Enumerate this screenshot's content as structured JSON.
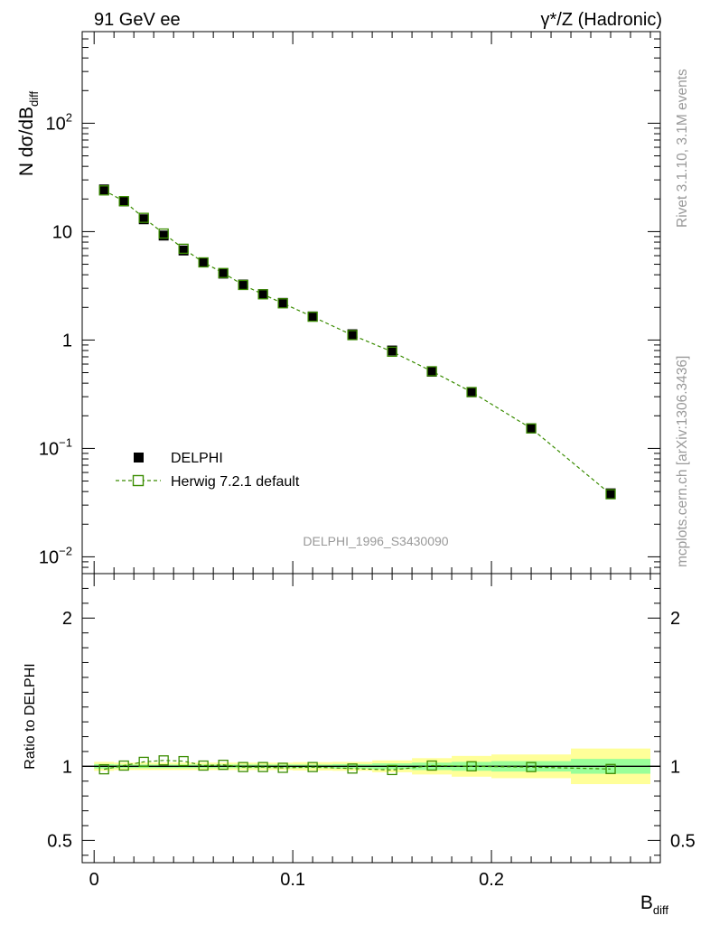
{
  "header": {
    "left_title": "91 GeV ee",
    "right_title": "γ*/Z (Hadronic)"
  },
  "side_labels": {
    "rivet": "Rivet 3.1.10,  3.1M events",
    "mcplots": "mcplots.cern.ch [arXiv:1306.3436]"
  },
  "analysis_id": "DELPHI_1996_S3430090",
  "colors": {
    "data": "#000000",
    "mc": "#3a8c00",
    "band_inner": "#99ff99",
    "band_outer": "#ffff99",
    "watermark": "#999999"
  },
  "chart_data": [
    {
      "type": "scatter",
      "panel": "main",
      "ylabel": "N dσ/dB",
      "ylabel_sub": "diff",
      "yscale": "log",
      "ylim": [
        0.007,
        700
      ],
      "xlim": [
        -0.006,
        0.285
      ],
      "y_ticks": [
        {
          "value": 0.01,
          "base": "10",
          "exp": "−2"
        },
        {
          "value": 0.1,
          "base": "10",
          "exp": "−1"
        },
        {
          "value": 1,
          "base": "1",
          "exp": ""
        },
        {
          "value": 10,
          "base": "10",
          "exp": ""
        },
        {
          "value": 100,
          "base": "10",
          "exp": "2"
        }
      ],
      "legend": [
        {
          "label": "DELPHI",
          "marker": "filled-square"
        },
        {
          "label": "Herwig 7.2.1 default",
          "marker": "open-square-dashed-line"
        }
      ],
      "legend_position": "middle-left",
      "series": [
        {
          "name": "DELPHI",
          "x": [
            0.005,
            0.015,
            0.025,
            0.035,
            0.045,
            0.055,
            0.065,
            0.075,
            0.085,
            0.095,
            0.11,
            0.13,
            0.15,
            0.17,
            0.19,
            0.22,
            0.26
          ],
          "values": [
            24.5,
            19.0,
            13.0,
            9.2,
            6.7,
            5.2,
            4.1,
            3.25,
            2.65,
            2.2,
            1.65,
            1.13,
            0.8,
            0.51,
            0.33,
            0.153,
            0.0385
          ]
        },
        {
          "name": "Herwig 7.2.1 default",
          "x": [
            0.005,
            0.015,
            0.025,
            0.035,
            0.045,
            0.055,
            0.065,
            0.075,
            0.085,
            0.095,
            0.11,
            0.13,
            0.15,
            0.17,
            0.19,
            0.22,
            0.26
          ],
          "values": [
            24.0,
            19.1,
            13.4,
            9.6,
            6.95,
            5.2,
            4.15,
            3.22,
            2.64,
            2.18,
            1.64,
            1.11,
            0.78,
            0.515,
            0.331,
            0.153,
            0.0378
          ]
        }
      ]
    },
    {
      "type": "line",
      "panel": "ratio",
      "ylabel": "Ratio to DELPHI",
      "ylim": [
        0.35,
        2.3
      ],
      "xlim": [
        -0.006,
        0.285
      ],
      "y_ticks": [
        0.5,
        1,
        2
      ],
      "y_tick_labels": [
        "0.5",
        "1",
        "2"
      ],
      "x_ticks": [
        0,
        0.1,
        0.2
      ],
      "x_tick_labels": [
        "0",
        "0.1",
        "0.2"
      ],
      "xlabel": "B",
      "xlabel_sub": "diff",
      "bins": [
        {
          "lo": 0.0,
          "hi": 0.01,
          "inner": 0.015,
          "outer": 0.03
        },
        {
          "lo": 0.01,
          "hi": 0.02,
          "inner": 0.012,
          "outer": 0.025
        },
        {
          "lo": 0.02,
          "hi": 0.03,
          "inner": 0.012,
          "outer": 0.025
        },
        {
          "lo": 0.03,
          "hi": 0.04,
          "inner": 0.012,
          "outer": 0.025
        },
        {
          "lo": 0.04,
          "hi": 0.05,
          "inner": 0.012,
          "outer": 0.025
        },
        {
          "lo": 0.05,
          "hi": 0.06,
          "inner": 0.012,
          "outer": 0.025
        },
        {
          "lo": 0.06,
          "hi": 0.07,
          "inner": 0.012,
          "outer": 0.025
        },
        {
          "lo": 0.07,
          "hi": 0.08,
          "inner": 0.012,
          "outer": 0.025
        },
        {
          "lo": 0.08,
          "hi": 0.09,
          "inner": 0.012,
          "outer": 0.025
        },
        {
          "lo": 0.09,
          "hi": 0.1,
          "inner": 0.012,
          "outer": 0.025
        },
        {
          "lo": 0.1,
          "hi": 0.12,
          "inner": 0.012,
          "outer": 0.028
        },
        {
          "lo": 0.12,
          "hi": 0.14,
          "inner": 0.015,
          "outer": 0.03
        },
        {
          "lo": 0.14,
          "hi": 0.16,
          "inner": 0.02,
          "outer": 0.04
        },
        {
          "lo": 0.16,
          "hi": 0.18,
          "inner": 0.025,
          "outer": 0.055
        },
        {
          "lo": 0.18,
          "hi": 0.2,
          "inner": 0.03,
          "outer": 0.07
        },
        {
          "lo": 0.2,
          "hi": 0.24,
          "inner": 0.035,
          "outer": 0.08
        },
        {
          "lo": 0.24,
          "hi": 0.28,
          "inner": 0.05,
          "outer": 0.12
        }
      ],
      "series": [
        {
          "name": "Herwig 7.2.1 default",
          "x": [
            0.005,
            0.015,
            0.025,
            0.035,
            0.045,
            0.055,
            0.065,
            0.075,
            0.085,
            0.095,
            0.11,
            0.13,
            0.15,
            0.17,
            0.19,
            0.22,
            0.26
          ],
          "values": [
            0.98,
            1.005,
            1.03,
            1.04,
            1.035,
            1.005,
            1.01,
            0.995,
            0.995,
            0.99,
            0.995,
            0.985,
            0.975,
            1.005,
            1.0,
            0.995,
            0.982
          ]
        }
      ]
    }
  ]
}
